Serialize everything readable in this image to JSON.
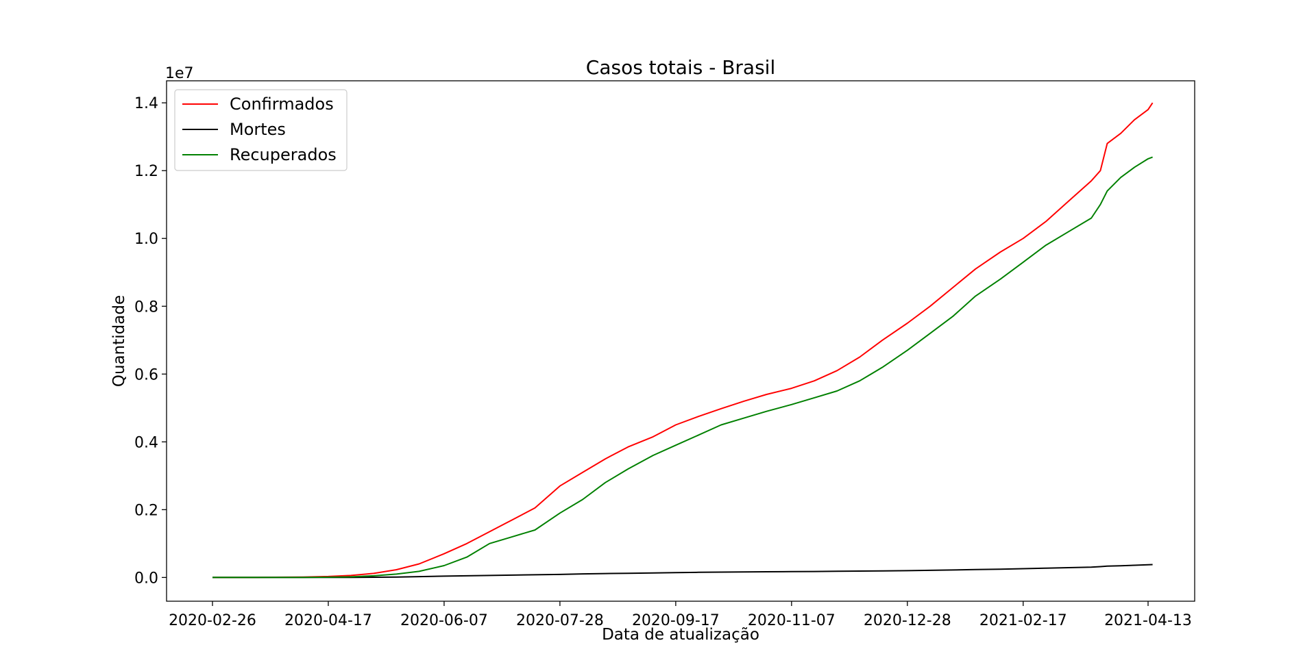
{
  "chart_data": {
    "type": "line",
    "title": "Casos totais - Brasil",
    "xlabel": "Data de atualização",
    "ylabel": "Quantidade",
    "y_offset_label": "1e7",
    "x_tick_labels": [
      "2020-02-26",
      "2020-04-17",
      "2020-06-07",
      "2020-07-28",
      "2020-09-17",
      "2020-11-07",
      "2020-12-28",
      "2021-02-17",
      "2021-04-13"
    ],
    "y_tick_labels": [
      "0.0",
      "0.2",
      "0.4",
      "0.6",
      "0.8",
      "1.0",
      "1.2",
      "1.4"
    ],
    "ylim": [
      -0.07,
      1.465
    ],
    "x": [
      "2020-02-26",
      "2020-03-17",
      "2020-04-06",
      "2020-04-17",
      "2020-04-27",
      "2020-05-07",
      "2020-05-17",
      "2020-05-27",
      "2020-06-07",
      "2020-06-17",
      "2020-06-27",
      "2020-07-07",
      "2020-07-17",
      "2020-07-28",
      "2020-08-07",
      "2020-08-17",
      "2020-08-27",
      "2020-09-07",
      "2020-09-17",
      "2020-09-27",
      "2020-10-07",
      "2020-10-17",
      "2020-10-27",
      "2020-11-07",
      "2020-11-17",
      "2020-11-27",
      "2020-12-07",
      "2020-12-17",
      "2020-12-28",
      "2021-01-07",
      "2021-01-17",
      "2021-01-27",
      "2021-02-07",
      "2021-02-17",
      "2021-02-27",
      "2021-03-09",
      "2021-03-19",
      "2021-03-23",
      "2021-03-26",
      "2021-04-01",
      "2021-04-07",
      "2021-04-13",
      "2021-04-15"
    ],
    "series": [
      {
        "name": "Confirmados",
        "color": "#ff0000",
        "values": [
          0,
          0.0002,
          0.0012,
          0.003,
          0.006,
          0.012,
          0.023,
          0.04,
          0.07,
          0.1,
          0.135,
          0.17,
          0.205,
          0.27,
          0.31,
          0.35,
          0.385,
          0.415,
          0.45,
          0.475,
          0.498,
          0.52,
          0.54,
          0.558,
          0.58,
          0.61,
          0.65,
          0.7,
          0.75,
          0.8,
          0.855,
          0.91,
          0.96,
          1.0,
          1.05,
          1.11,
          1.17,
          1.2,
          1.28,
          1.31,
          1.35,
          1.38,
          1.4
        ]
      },
      {
        "name": "Mortes",
        "color": "#000000",
        "values": [
          0,
          0.0001,
          0.0001,
          0.0002,
          0.0003,
          0.0006,
          0.0012,
          0.0025,
          0.004,
          0.005,
          0.006,
          0.007,
          0.008,
          0.009,
          0.0105,
          0.0115,
          0.0125,
          0.0135,
          0.0145,
          0.0152,
          0.0158,
          0.0163,
          0.0168,
          0.0172,
          0.0176,
          0.0182,
          0.0188,
          0.0195,
          0.02,
          0.021,
          0.022,
          0.0235,
          0.0245,
          0.026,
          0.0275,
          0.029,
          0.0305,
          0.032,
          0.0335,
          0.0345,
          0.036,
          0.0375,
          0.038
        ]
      },
      {
        "name": "Recuperados",
        "color": "#008000",
        "values": [
          0,
          0.0001,
          0.0003,
          0.0008,
          0.002,
          0.005,
          0.01,
          0.018,
          0.035,
          0.06,
          0.1,
          0.12,
          0.14,
          0.19,
          0.23,
          0.28,
          0.32,
          0.36,
          0.39,
          0.42,
          0.45,
          0.47,
          0.49,
          0.51,
          0.53,
          0.55,
          0.58,
          0.62,
          0.67,
          0.72,
          0.77,
          0.83,
          0.88,
          0.93,
          0.98,
          1.02,
          1.06,
          1.1,
          1.14,
          1.18,
          1.21,
          1.235,
          1.24
        ]
      }
    ],
    "legend_position": "upper-left",
    "grid": false
  }
}
